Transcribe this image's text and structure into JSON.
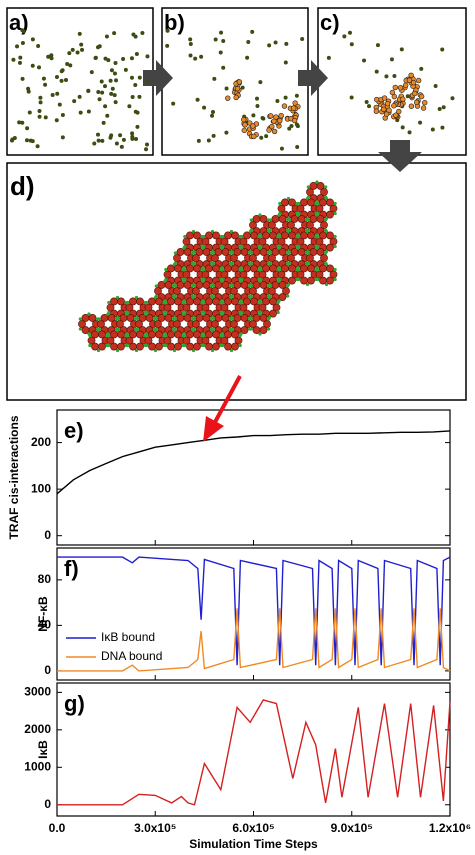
{
  "panels": {
    "a": "a)",
    "b": "b)",
    "c": "c)",
    "d": "d)"
  },
  "chart_data": [
    {
      "type": "line",
      "panel_label": "e)",
      "ylabel": "TRAF cis-interactions",
      "color": "#000000",
      "x": [
        0,
        50000,
        100000,
        150000,
        200000,
        250000,
        300000,
        350000,
        400000,
        450000,
        500000,
        550000,
        600000,
        650000,
        700000,
        750000,
        800000,
        850000,
        900000,
        950000,
        1000000,
        1050000,
        1100000,
        1150000,
        1200000
      ],
      "values": [
        90,
        120,
        140,
        155,
        170,
        180,
        190,
        195,
        200,
        205,
        210,
        212,
        215,
        215,
        217,
        218,
        218,
        220,
        220,
        220,
        221,
        222,
        222,
        223,
        225
      ],
      "xlim": [
        0,
        1200000
      ],
      "ylim": [
        -20,
        270
      ],
      "yticks": [
        0,
        100,
        200
      ]
    },
    {
      "type": "line",
      "panel_label": "f)",
      "ylabel": "NF-κB",
      "legend": "center-left",
      "x": [
        0,
        200000,
        230000,
        250000,
        400000,
        430000,
        440000,
        450000,
        540000,
        550000,
        560000,
        670000,
        680000,
        690000,
        780000,
        790000,
        800000,
        840000,
        850000,
        860000,
        900000,
        910000,
        920000,
        980000,
        990000,
        1000000,
        1080000,
        1090000,
        1100000,
        1160000,
        1170000,
        1180000,
        1200000
      ],
      "series": [
        {
          "name": "IκB bound",
          "color": "#1f1fd0",
          "values": [
            100,
            100,
            95,
            100,
            97,
            90,
            45,
            98,
            90,
            5,
            97,
            90,
            5,
            97,
            90,
            5,
            97,
            90,
            5,
            97,
            90,
            5,
            97,
            90,
            5,
            97,
            90,
            5,
            97,
            90,
            5,
            97,
            100
          ]
        },
        {
          "name": "DNA bound",
          "color": "#f08a24",
          "values": [
            0,
            0,
            5,
            0,
            3,
            10,
            35,
            2,
            10,
            55,
            3,
            10,
            55,
            3,
            10,
            55,
            3,
            10,
            55,
            3,
            10,
            55,
            3,
            10,
            55,
            3,
            10,
            55,
            3,
            10,
            55,
            3,
            0
          ]
        }
      ],
      "xlim": [
        0,
        1200000
      ],
      "ylim": [
        -8,
        108
      ],
      "yticks": [
        0,
        40,
        80
      ]
    },
    {
      "type": "line",
      "panel_label": "g)",
      "ylabel": "IκB",
      "xlabel": "Simulation Time Steps",
      "color": "#d42020",
      "x": [
        0,
        200000,
        250000,
        300000,
        350000,
        380000,
        400000,
        420000,
        450000,
        500000,
        550000,
        590000,
        630000,
        670000,
        720000,
        760000,
        790000,
        820000,
        850000,
        870000,
        920000,
        950000,
        1000000,
        1040000,
        1080000,
        1110000,
        1150000,
        1180000,
        1200000
      ],
      "values": [
        0,
        0,
        280,
        250,
        50,
        220,
        50,
        0,
        1100,
        400,
        2600,
        2200,
        2800,
        2700,
        700,
        2200,
        1600,
        50,
        1500,
        200,
        2600,
        200,
        2700,
        200,
        2700,
        200,
        2650,
        100,
        2750
      ],
      "xlim": [
        0,
        1200000
      ],
      "ylim": [
        -300,
        3250
      ],
      "yticks": [
        0,
        1000,
        2000,
        3000
      ],
      "xticks": [
        {
          "value": 0,
          "label": "0.0"
        },
        {
          "value": 300000,
          "label": "3.0x10⁵"
        },
        {
          "value": 600000,
          "label": "6.0x10⁵"
        },
        {
          "value": 900000,
          "label": "9.0x10⁵"
        },
        {
          "value": 1200000,
          "label": "1.2x10⁶"
        }
      ]
    }
  ]
}
